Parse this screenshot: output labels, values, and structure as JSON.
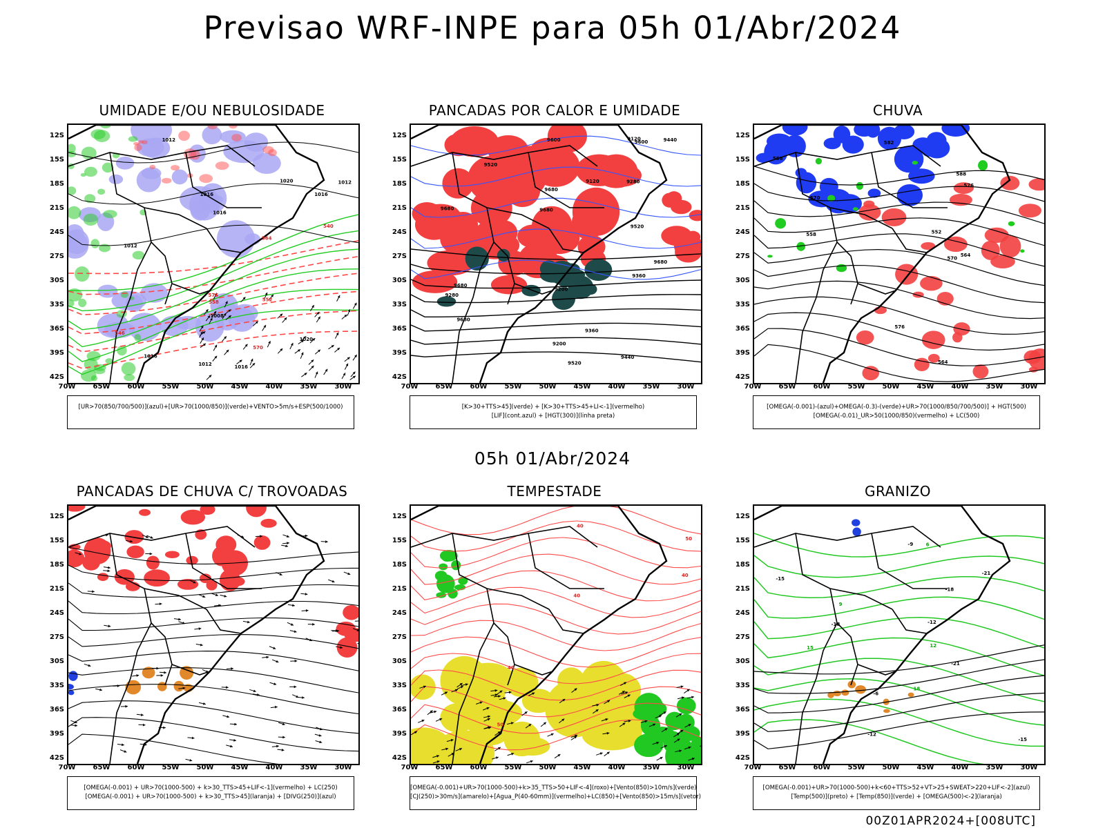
{
  "title": "Previsao WRF-INPE  para 05h 01/Abr/2024",
  "subtitle": "05h 01/Abr/2024",
  "footer": "00Z01APR2024+[008UTC]",
  "axis": {
    "lat_ticks": [
      "12S",
      "15S",
      "18S",
      "21S",
      "24S",
      "27S",
      "30S",
      "33S",
      "36S",
      "39S",
      "42S"
    ],
    "lon_ticks": [
      "70W",
      "65W",
      "60W",
      "55W",
      "50W",
      "45W",
      "40W",
      "35W",
      "30W"
    ]
  },
  "panels": [
    {
      "id": "umidade",
      "title": "UMIDADE E/OU NEBULOSIDADE",
      "legend": [
        "[UR>70(850/700/500)](azul)+[UR>70(1000/850)](verde)+VENTO>5m/s+ESP(500/1000)"
      ],
      "labels": [
        "1012",
        "1012",
        "1016",
        "1020",
        "1008",
        "1012",
        "1016",
        "1016",
        "1012",
        "1016",
        "1020",
        "1016",
        "576",
        "570",
        "564",
        "558",
        "552",
        "546",
        "540"
      ]
    },
    {
      "id": "pancadas-calor",
      "title": "PANCADAS POR CALOR E UMIDADE",
      "legend": [
        "[K>30+TTS>45](verde) + [K>30+TTS>45+LI<-1](vermelho)",
        "[LIF](cont.azul) + [HGT(300)](linha preta)"
      ],
      "labels": [
        "9680",
        "9680",
        "9680",
        "9680",
        "9680",
        "9680",
        "9600",
        "9520",
        "9520",
        "9600",
        "9520",
        "9440",
        "9360",
        "9280",
        "9200",
        "9120",
        "9440",
        "9360",
        "9280",
        "9200",
        "9120"
      ]
    },
    {
      "id": "chuva",
      "title": "CHUVA",
      "legend": [
        "[OMEGA(-0.001)-(azul)+OMEGA(-0.3)-(verde)+UR>70(1000/850/700/500)] + HGT(500)",
        "[OMEGA(-0.01)_UR>50(1000/850)(vermelho) + LC(500)"
      ],
      "labels": [
        "588",
        "582",
        "576",
        "570",
        "564",
        "558",
        "576",
        "570",
        "564",
        "558",
        "552"
      ]
    },
    {
      "id": "trovoadas",
      "title": "PANCADAS DE CHUVA C/ TROVOADAS",
      "legend": [
        "[OMEGA(-0.001) + UR>70(1000-500) + k>30_TTS>45+LIF<-1](vermelho) + LC(250)",
        "[OMEGA(-0.001) + UR>70(1000-500) + k>30_TTS>45](laranja) + [DIVG(250)](azul)"
      ],
      "labels": []
    },
    {
      "id": "tempestade",
      "title": "TEMPESTADE",
      "legend": [
        "[OMEGA(-0.001)+UR>70(1000-500)+k>35_TTS>50+LIF<-4](roxo)+[Vento(850)>10m/s](verde)",
        "[CJ(250)>30m/s](amarelo)+[Agua_P(40-60mm)](vermelho)+LC(850)+[Vento(850)>15m/s](vetor)"
      ],
      "labels": [
        "50",
        "40",
        "50",
        "40",
        "40",
        "40"
      ]
    },
    {
      "id": "granizo",
      "title": "GRANIZO",
      "legend": [
        "[OMEGA(-0.001)+UR>70(1000-500)+k<60+TTS>52+VT>25+SWEAT>220+LIF<-2](azul)",
        "[Temp(500)](preto) + [Temp(850)](verde) + [OMEGA(500)<-2](laranja)"
      ],
      "labels": [
        "18",
        "15",
        "12",
        "9",
        "6",
        "-6",
        "-9",
        "-12",
        "-15",
        "-18",
        "-21",
        "-12",
        "-15",
        "-18",
        "-21"
      ]
    }
  ]
}
